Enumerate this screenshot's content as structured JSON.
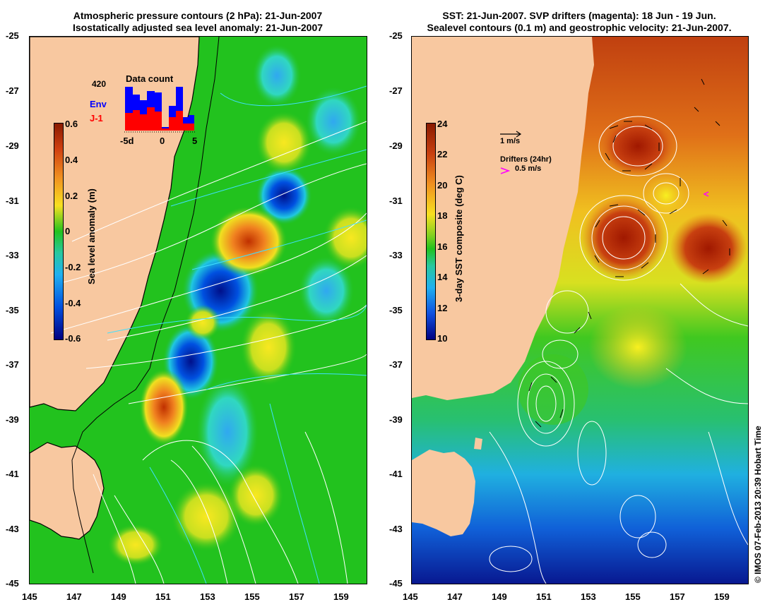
{
  "left_panel": {
    "title_line1": "Atmospheric pressure contours (2 hPa): 21-Jun-2007",
    "title_line2": "Isostatically adjusted sea level anomaly: 21-Jun-2007",
    "y_ticks": [
      "-25",
      "-27",
      "-29",
      "-31",
      "-33",
      "-35",
      "-37",
      "-39",
      "-41",
      "-43",
      "-45"
    ],
    "x_ticks": [
      "145",
      "147",
      "149",
      "151",
      "153",
      "155",
      "157",
      "159"
    ],
    "colorbar": {
      "label": "Sea level anomaly (m)",
      "ticks": [
        "0.6",
        "0.4",
        "0.2",
        "0",
        "-0.2",
        "-0.4",
        "-0.6"
      ],
      "range": [
        -0.6,
        0.6
      ]
    },
    "data_count": {
      "title": "Data count",
      "total": "420",
      "legend_env": "Env",
      "legend_j1": "J-1",
      "x_ticks": [
        "-5d",
        "0",
        "5"
      ],
      "env_color": "#0000ff",
      "j1_color": "#ff0000"
    }
  },
  "right_panel": {
    "title_line1": "SST: 21-Jun-2007. SVP drifters (magenta): 18 Jun - 19 Jun.",
    "title_line2": "Sealevel contours (0.1 m) and geostrophic velocity: 21-Jun-2007.",
    "y_ticks": [
      "-25",
      "-27",
      "-29",
      "-31",
      "-33",
      "-35",
      "-37",
      "-39",
      "-41",
      "-43",
      "-45"
    ],
    "x_ticks": [
      "145",
      "147",
      "149",
      "151",
      "153",
      "155",
      "157",
      "159"
    ],
    "colorbar": {
      "label": "3-day SST composite (deg C)",
      "ticks": [
        "24",
        "22",
        "20",
        "18",
        "16",
        "14",
        "12",
        "10"
      ],
      "range": [
        10,
        24
      ]
    },
    "velocity_legend": "1 m/s",
    "drifters_label": "Drifters (24hr)",
    "drifters_speed": "0.5 m/s",
    "drifter_color": "#ff00ff"
  },
  "credit": "© IMOS 07-Feb-2013 20:39 Hobart Time",
  "colors": {
    "land": "#f8c8a0",
    "ocean_green": "#22c21e",
    "coastline": "#000000",
    "contour_cyan": "#3fe0ff",
    "contour_white": "#ffffff"
  }
}
